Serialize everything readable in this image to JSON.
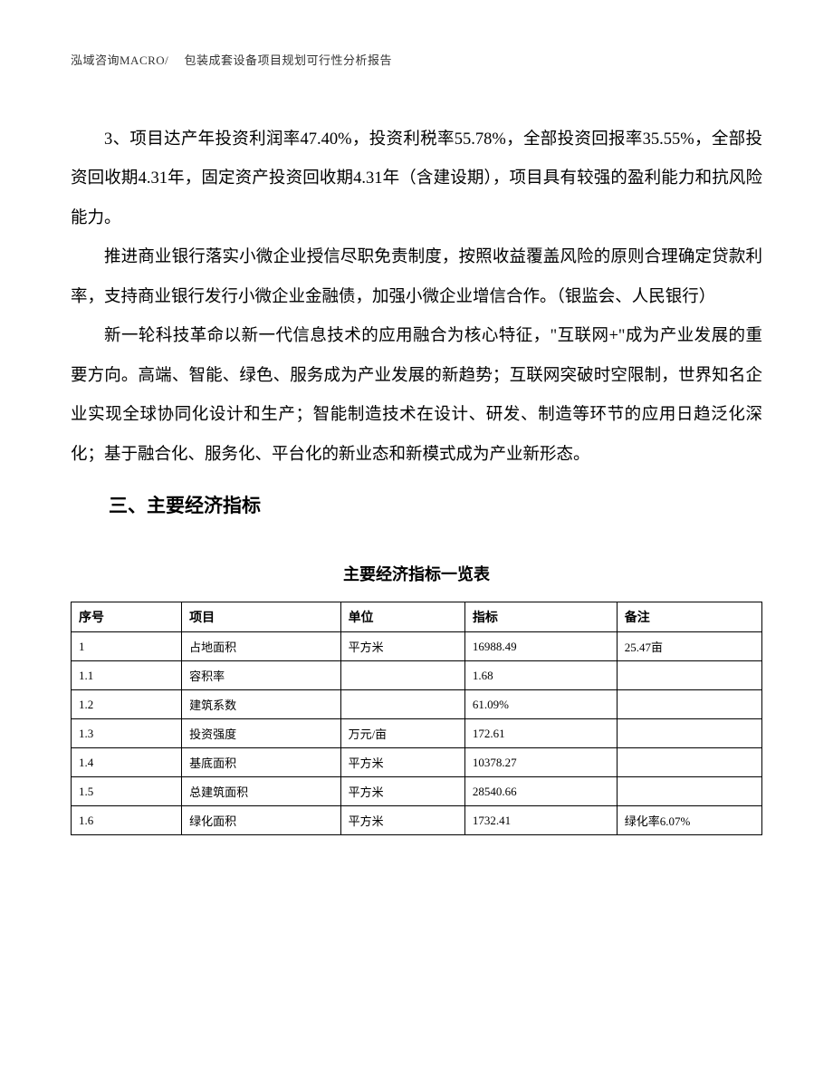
{
  "header": {
    "text": "泓域咨询MACRO/　 包装成套设备项目规划可行性分析报告"
  },
  "paragraphs": {
    "p1": "3、项目达产年投资利润率47.40%，投资利税率55.78%，全部投资回报率35.55%，全部投资回收期4.31年，固定资产投资回收期4.31年（含建设期），项目具有较强的盈利能力和抗风险能力。",
    "p2": "推进商业银行落实小微企业授信尽职免责制度，按照收益覆盖风险的原则合理确定贷款利率，支持商业银行发行小微企业金融债，加强小微企业增信合作。（银监会、人民银行）",
    "p3": "新一轮科技革命以新一代信息技术的应用融合为核心特征，\"互联网+\"成为产业发展的重要方向。高端、智能、绿色、服务成为产业发展的新趋势；互联网突破时空限制，世界知名企业实现全球协同化设计和生产；智能制造技术在设计、研发、制造等环节的应用日趋泛化深化；基于融合化、服务化、平台化的新业态和新模式成为产业新形态。"
  },
  "section_heading": "三、主要经济指标",
  "table": {
    "title": "主要经济指标一览表",
    "columns": [
      "序号",
      "项目",
      "单位",
      "指标",
      "备注"
    ],
    "rows": [
      [
        "1",
        "占地面积",
        "平方米",
        "16988.49",
        "25.47亩"
      ],
      [
        "1.1",
        "容积率",
        "",
        "1.68",
        ""
      ],
      [
        "1.2",
        "建筑系数",
        "",
        "61.09%",
        ""
      ],
      [
        "1.3",
        "投资强度",
        "万元/亩",
        "172.61",
        ""
      ],
      [
        "1.4",
        "基底面积",
        "平方米",
        "10378.27",
        ""
      ],
      [
        "1.5",
        "总建筑面积",
        "平方米",
        "28540.66",
        ""
      ],
      [
        "1.6",
        "绿化面积",
        "平方米",
        "1732.41",
        "绿化率6.07%"
      ]
    ],
    "column_widths_pct": [
      16,
      23,
      18,
      22,
      21
    ],
    "border_color": "#000000",
    "header_font_family": "SimHei",
    "body_font_family": "SimSun",
    "font_size": 13
  },
  "styling": {
    "page_bg": "#ffffff",
    "text_color": "#000000",
    "body_font_size": 18.5,
    "body_line_height": 2.35,
    "heading_font_size": 21,
    "table_title_font_size": 18,
    "header_font_size": 13
  }
}
